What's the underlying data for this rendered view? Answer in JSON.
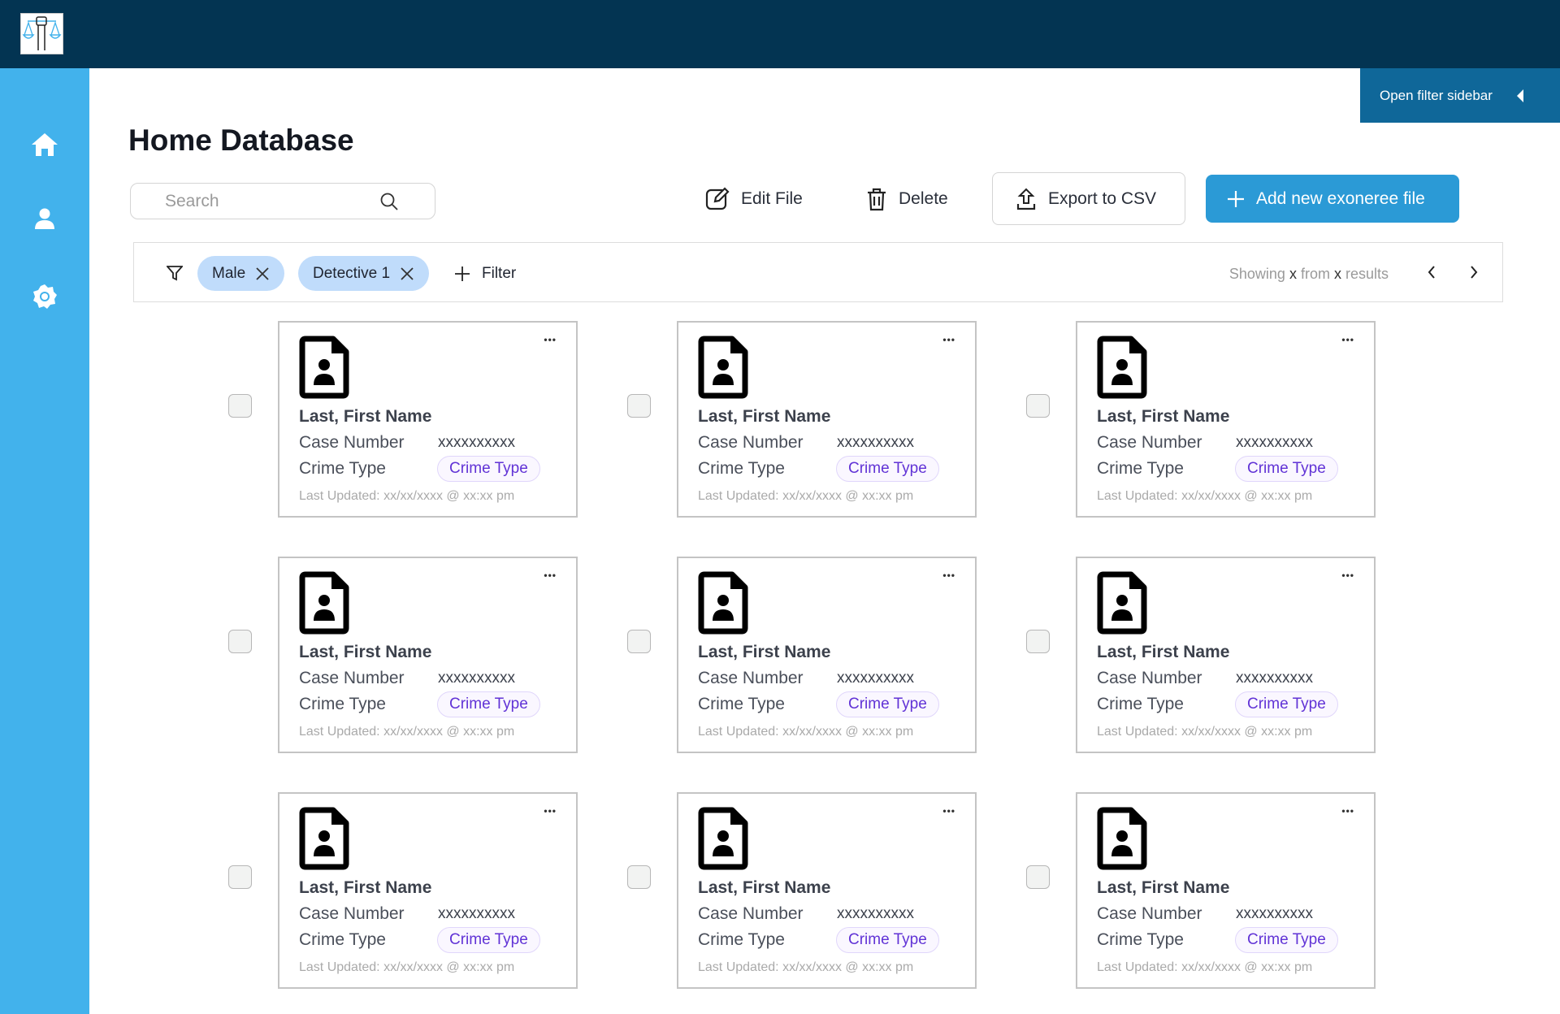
{
  "app": {
    "logo_alt": "scales of justice with raised fist"
  },
  "header": {
    "open_filter_sidebar": "Open filter sidebar"
  },
  "sidebar": {
    "items": [
      {
        "icon": "home-icon"
      },
      {
        "icon": "user-icon"
      },
      {
        "icon": "gear-icon"
      }
    ]
  },
  "page": {
    "title": "Home Database"
  },
  "search": {
    "placeholder": "Search"
  },
  "toolbar": {
    "edit": "Edit File",
    "delete": "Delete",
    "export": "Export to CSV",
    "add": "Add new exoneree file"
  },
  "filters": {
    "chips": [
      "Male",
      "Detective 1"
    ],
    "add_label": "Filter",
    "showing_prefix": "Showing",
    "showing_x1": "x",
    "showing_mid": "from",
    "showing_x2": "x",
    "showing_suffix": "results"
  },
  "colors": {
    "topbar": "#033452",
    "sidebar": "#42b2ec",
    "accent": "#2b9ad6",
    "chip": "#c0dcfb",
    "crime_pill_text": "#6133d6"
  },
  "cards": [
    {
      "name": "Last, First Name",
      "case_label": "Case Number",
      "case_value": "xxxxxxxxxx",
      "crime_label": "Crime Type",
      "crime_value": "Crime Type",
      "updated": "Last Updated: xx/xx/xxxx @ xx:xx pm"
    },
    {
      "name": "Last, First Name",
      "case_label": "Case Number",
      "case_value": "xxxxxxxxxx",
      "crime_label": "Crime Type",
      "crime_value": "Crime Type",
      "updated": "Last Updated: xx/xx/xxxx @ xx:xx pm"
    },
    {
      "name": "Last, First Name",
      "case_label": "Case Number",
      "case_value": "xxxxxxxxxx",
      "crime_label": "Crime Type",
      "crime_value": "Crime Type",
      "updated": "Last Updated: xx/xx/xxxx @ xx:xx pm"
    },
    {
      "name": "Last, First Name",
      "case_label": "Case Number",
      "case_value": "xxxxxxxxxx",
      "crime_label": "Crime Type",
      "crime_value": "Crime Type",
      "updated": "Last Updated: xx/xx/xxxx @ xx:xx pm"
    },
    {
      "name": "Last, First Name",
      "case_label": "Case Number",
      "case_value": "xxxxxxxxxx",
      "crime_label": "Crime Type",
      "crime_value": "Crime Type",
      "updated": "Last Updated: xx/xx/xxxx @ xx:xx pm"
    },
    {
      "name": "Last, First Name",
      "case_label": "Case Number",
      "case_value": "xxxxxxxxxx",
      "crime_label": "Crime Type",
      "crime_value": "Crime Type",
      "updated": "Last Updated: xx/xx/xxxx @ xx:xx pm"
    },
    {
      "name": "Last, First Name",
      "case_label": "Case Number",
      "case_value": "xxxxxxxxxx",
      "crime_label": "Crime Type",
      "crime_value": "Crime Type",
      "updated": "Last Updated: xx/xx/xxxx @ xx:xx pm"
    },
    {
      "name": "Last, First Name",
      "case_label": "Case Number",
      "case_value": "xxxxxxxxxx",
      "crime_label": "Crime Type",
      "crime_value": "Crime Type",
      "updated": "Last Updated: xx/xx/xxxx @ xx:xx pm"
    },
    {
      "name": "Last, First Name",
      "case_label": "Case Number",
      "case_value": "xxxxxxxxxx",
      "crime_label": "Crime Type",
      "crime_value": "Crime Type",
      "updated": "Last Updated: xx/xx/xxxx @ xx:xx pm"
    }
  ]
}
